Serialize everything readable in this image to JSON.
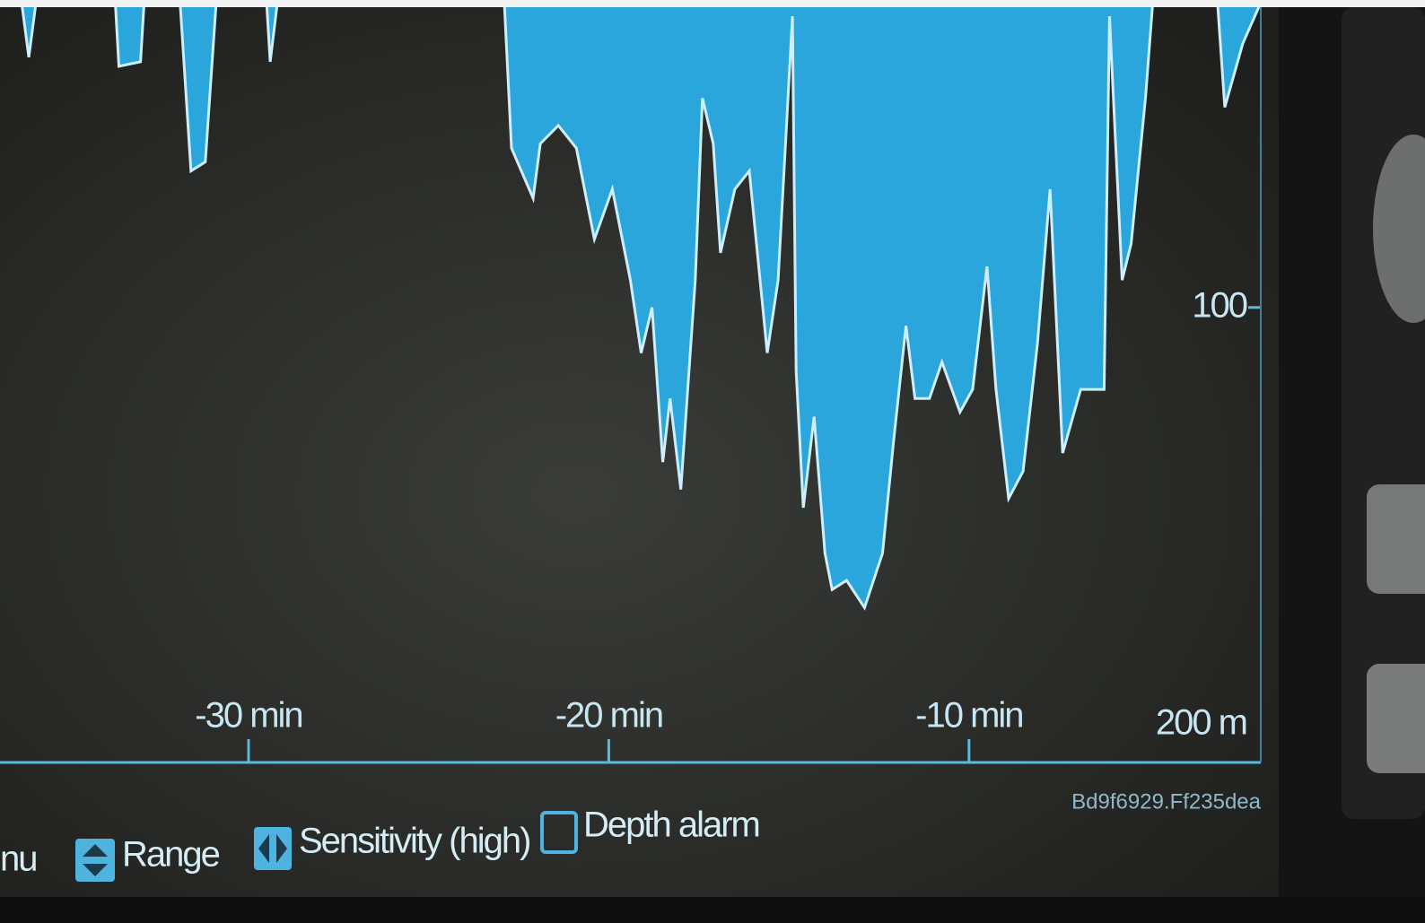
{
  "chart_data": {
    "type": "area",
    "color": "#2aa6dc",
    "line_color": "#cdeefa",
    "x": [
      -36.9,
      -36.3,
      -36.1,
      -35.9,
      -33.7,
      -33.6,
      -33.0,
      -32.9,
      -31.9,
      -31.6,
      -31.2,
      -30.9,
      -29.5,
      -29.4,
      -29.2,
      -22.9,
      -22.7,
      -22.1,
      -21.9,
      -21.4,
      -20.9,
      -20.4,
      -19.9,
      -19.4,
      -19.1,
      -18.8,
      -18.5,
      -18.3,
      -18.0,
      -17.6,
      -17.4,
      -17.1,
      -16.9,
      -16.5,
      -16.1,
      -15.6,
      -15.3,
      -14.9,
      -14.8,
      -14.6,
      -14.3,
      -14.0,
      -13.8,
      -13.4,
      -12.9,
      -12.4,
      -12.1,
      -11.75,
      -11.5,
      -11.1,
      -10.75,
      -10.25,
      -9.9,
      -9.5,
      -9.25,
      -8.9,
      -8.5,
      -8.1,
      -7.75,
      -7.4,
      -6.9,
      -6.25,
      -6.1,
      -5.75,
      -5.5,
      -5.1,
      -4.9,
      -3.1,
      -2.9,
      -2.4,
      -1.9
    ],
    "values": [
      33,
      33,
      45,
      33,
      33,
      47,
      46,
      33,
      33,
      70,
      68,
      33,
      33,
      46,
      33,
      33,
      65,
      76,
      64,
      60,
      65,
      85,
      74,
      94,
      110,
      100,
      134,
      120,
      140,
      94,
      54,
      64,
      88,
      74,
      70,
      110,
      94,
      36,
      114,
      144,
      124,
      154,
      162,
      160,
      166,
      154,
      130,
      104,
      120,
      120,
      112,
      123,
      118,
      91,
      118,
      142,
      136,
      108,
      74,
      132,
      118,
      118,
      36,
      94,
      86,
      54,
      33,
      33,
      56,
      42,
      33
    ],
    "xlim": [
      -36.9,
      -1.9
    ],
    "ylim": [
      34,
      200
    ],
    "y_reversed": true,
    "xticks": [
      {
        "value": -30,
        "label": "-30 min"
      },
      {
        "value": -20,
        "label": "-20 min"
      },
      {
        "value": -10,
        "label": "-10 min"
      }
    ],
    "yticks": [
      100,
      {
        "value": 200,
        "label": "200 m"
      }
    ]
  },
  "ui": {
    "softkeys": [
      "nu",
      "Range",
      "Sensitivity (high)",
      "Depth alarm"
    ],
    "id_code": "Bd9f6929.Ff235dea"
  }
}
